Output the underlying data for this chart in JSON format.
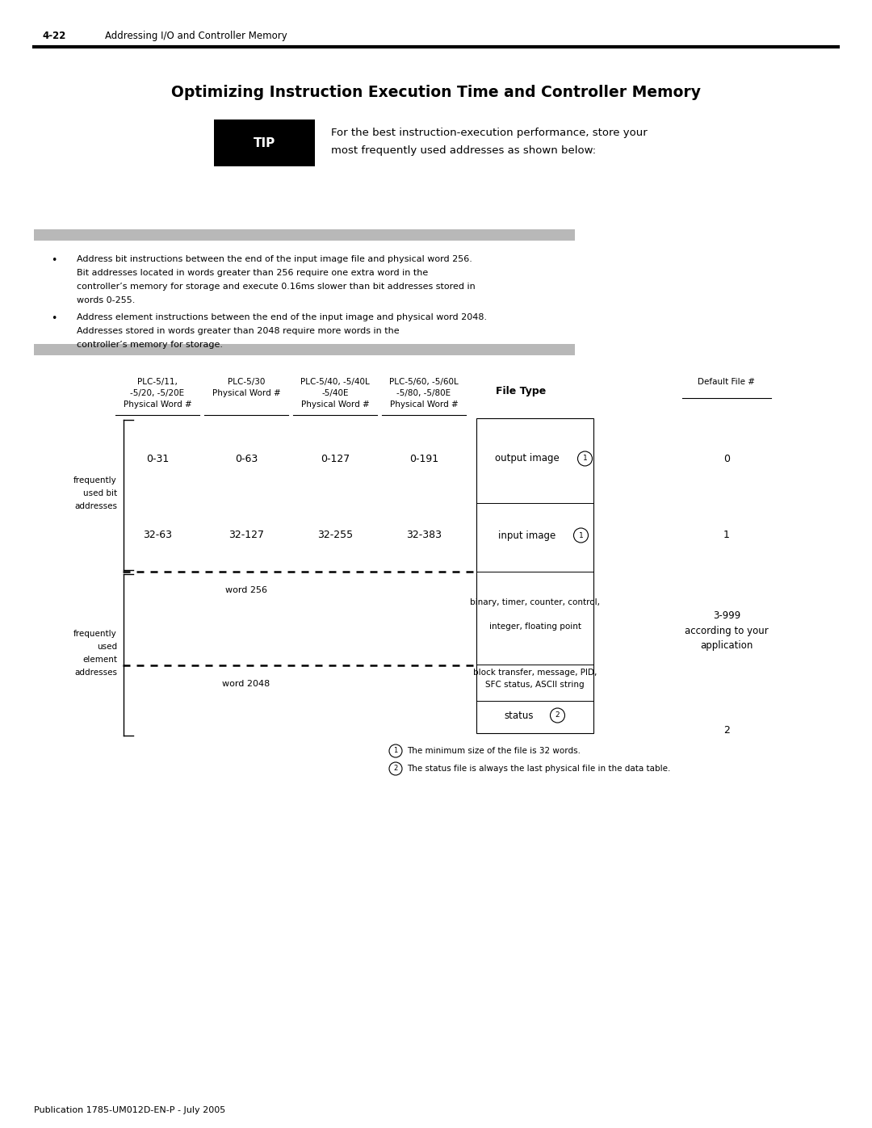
{
  "page_header_left": "4-22",
  "page_header_right": "Addressing I/O and Controller Memory",
  "main_title": "Optimizing Instruction Execution Time and Controller Memory",
  "tip_text_line1": "For the best instruction-execution performance, store your",
  "tip_text_line2": "most frequently used addresses as shown below:",
  "bullet1_line1": "Address bit instructions between the end of the input image file and physical word 256.",
  "bullet1_line2": "Bit addresses located in words greater than 256 require one extra word in the",
  "bullet1_line3": "controller’s memory for storage and execute 0.16ms slower than bit addresses stored in",
  "bullet1_line4": "words 0-255.",
  "bullet2_line1": "Address element instructions between the end of the input image and physical word 2048.",
  "bullet2_line2": "Addresses stored in words greater than 2048 require more words in the",
  "bullet2_line3": "controller’s memory for storage.",
  "col1_header1": "PLC-5/11,",
  "col1_header2": "-5/20, -5/20E",
  "col1_header3": "Physical Word #",
  "col2_header1": "PLC-5/30",
  "col2_header2": "Physical Word #",
  "col3_header1": "PLC-5/40, -5/40L",
  "col3_header2": "-5/40E",
  "col3_header3": "Physical Word #",
  "col4_header1": "PLC-5/60, -5/60L",
  "col4_header2": "-5/80, -5/80E",
  "col4_header3": "Physical Word #",
  "col5_header": "File Type",
  "col6_header": "Default File #",
  "row1_col1": "0-31",
  "row1_col2": "0-63",
  "row1_col3": "0-127",
  "row1_col4": "0-191",
  "row1_col6": "0",
  "row2_col1": "32-63",
  "row2_col2": "32-127",
  "row2_col3": "32-255",
  "row2_col4": "32-383",
  "row2_col6": "1",
  "word256_label": "word 256",
  "row3_col5a": "binary, timer, counter, control,",
  "row3_col5b": "integer, floating point",
  "row3_col5c": "block transfer, message, PID,",
  "row3_col5d": "SFC status, ASCII string",
  "word2048_label": "word 2048",
  "row4_col5": "status",
  "row4_col6": "2",
  "freq_bit_label1": "frequently",
  "freq_bit_label2": "used bit",
  "freq_bit_label3": "addresses",
  "freq_elem_label1": "frequently",
  "freq_elem_label2": "used",
  "freq_elem_label3": "element",
  "freq_elem_label4": "addresses",
  "footnote1": "The minimum size of the file is 32 words.",
  "footnote2": "The status file is always the last physical file in the data table.",
  "footer_text": "Publication 1785-UM012D-EN-P - July 2005",
  "bg_color": "#ffffff",
  "text_color": "#000000",
  "gray_bar_color": "#b8b8b8",
  "header_line_color": "#000000"
}
